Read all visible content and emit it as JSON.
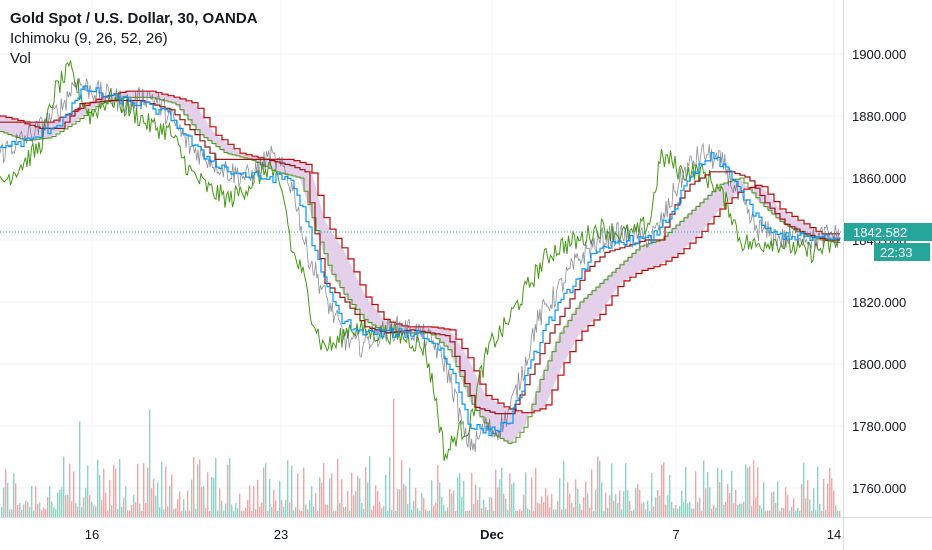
{
  "header": {
    "title": "Gold Spot / U.S. Dollar, 30, OANDA",
    "indicator": "Ichimoku (9, 26, 52, 26)",
    "volume": "Vol"
  },
  "price_badge": {
    "price": "1842.582",
    "countdown": "22:33"
  },
  "colors": {
    "price": "#2196f3",
    "conversion": "#0496ff",
    "base": "#991515",
    "lagging": "#459915",
    "lead_a": "#459915",
    "lead_b": "#cc0000",
    "cloud": "#e0c8e8",
    "badge": "#26a69a",
    "vol_up": "#8fd3c8",
    "vol_down": "#f4a6a6"
  },
  "chart_data": {
    "type": "line",
    "ylim": [
      1750,
      1915
    ],
    "y_ticks": [
      "1760.000",
      "1780.000",
      "1800.000",
      "1820.000",
      "1840.000",
      "1860.000",
      "1880.000",
      "1900.000"
    ],
    "x_ticks": [
      {
        "label": "16",
        "bold": false
      },
      {
        "label": "23",
        "bold": false
      },
      {
        "label": "Dec",
        "bold": true
      },
      {
        "label": "7",
        "bold": false
      },
      {
        "label": "14",
        "bold": false
      }
    ],
    "current_price": 1842.582,
    "price_keypoints": [
      [
        0,
        1868
      ],
      [
        20,
        1872
      ],
      [
        40,
        1876
      ],
      [
        60,
        1882
      ],
      [
        75,
        1891
      ],
      [
        95,
        1888
      ],
      [
        110,
        1886
      ],
      [
        130,
        1884
      ],
      [
        150,
        1887
      ],
      [
        170,
        1880
      ],
      [
        190,
        1870
      ],
      [
        210,
        1866
      ],
      [
        230,
        1862
      ],
      [
        250,
        1860
      ],
      [
        270,
        1867
      ],
      [
        285,
        1862
      ],
      [
        295,
        1855
      ],
      [
        305,
        1838
      ],
      [
        315,
        1830
      ],
      [
        325,
        1822
      ],
      [
        335,
        1815
      ],
      [
        345,
        1808
      ],
      [
        360,
        1806
      ],
      [
        380,
        1810
      ],
      [
        400,
        1812
      ],
      [
        420,
        1810
      ],
      [
        435,
        1806
      ],
      [
        445,
        1800
      ],
      [
        455,
        1790
      ],
      [
        465,
        1776
      ],
      [
        475,
        1774
      ],
      [
        485,
        1780
      ],
      [
        495,
        1778
      ],
      [
        505,
        1782
      ],
      [
        515,
        1790
      ],
      [
        525,
        1800
      ],
      [
        535,
        1812
      ],
      [
        545,
        1818
      ],
      [
        555,
        1822
      ],
      [
        570,
        1830
      ],
      [
        585,
        1836
      ],
      [
        600,
        1840
      ],
      [
        620,
        1842
      ],
      [
        640,
        1840
      ],
      [
        655,
        1842
      ],
      [
        665,
        1848
      ],
      [
        675,
        1856
      ],
      [
        685,
        1862
      ],
      [
        695,
        1866
      ],
      [
        705,
        1868
      ],
      [
        715,
        1866
      ],
      [
        725,
        1864
      ],
      [
        735,
        1856
      ],
      [
        745,
        1850
      ],
      [
        755,
        1844
      ],
      [
        770,
        1842
      ],
      [
        785,
        1840
      ],
      [
        800,
        1842
      ],
      [
        815,
        1840
      ],
      [
        830,
        1842
      ],
      [
        840,
        1841
      ]
    ],
    "conversion_keypoints": [
      [
        0,
        1870
      ],
      [
        30,
        1872
      ],
      [
        60,
        1878
      ],
      [
        85,
        1889
      ],
      [
        110,
        1886
      ],
      [
        140,
        1884
      ],
      [
        170,
        1880
      ],
      [
        200,
        1868
      ],
      [
        230,
        1862
      ],
      [
        260,
        1860
      ],
      [
        290,
        1860
      ],
      [
        305,
        1848
      ],
      [
        320,
        1830
      ],
      [
        340,
        1815
      ],
      [
        360,
        1810
      ],
      [
        390,
        1810
      ],
      [
        420,
        1810
      ],
      [
        440,
        1805
      ],
      [
        455,
        1795
      ],
      [
        470,
        1780
      ],
      [
        490,
        1778
      ],
      [
        510,
        1782
      ],
      [
        525,
        1795
      ],
      [
        545,
        1812
      ],
      [
        565,
        1822
      ],
      [
        590,
        1834
      ],
      [
        620,
        1840
      ],
      [
        650,
        1840
      ],
      [
        670,
        1848
      ],
      [
        690,
        1860
      ],
      [
        710,
        1867
      ],
      [
        730,
        1862
      ],
      [
        750,
        1850
      ],
      [
        770,
        1842
      ],
      [
        800,
        1841
      ],
      [
        840,
        1840
      ]
    ],
    "base_keypoints": [
      [
        0,
        1878
      ],
      [
        20,
        1878
      ],
      [
        40,
        1876
      ],
      [
        60,
        1876
      ],
      [
        80,
        1884
      ],
      [
        110,
        1885
      ],
      [
        140,
        1885
      ],
      [
        170,
        1882
      ],
      [
        195,
        1874
      ],
      [
        215,
        1866
      ],
      [
        240,
        1866
      ],
      [
        265,
        1866
      ],
      [
        290,
        1864
      ],
      [
        305,
        1862
      ],
      [
        315,
        1842
      ],
      [
        325,
        1826
      ],
      [
        345,
        1820
      ],
      [
        365,
        1812
      ],
      [
        385,
        1810
      ],
      [
        410,
        1811
      ],
      [
        430,
        1810
      ],
      [
        448,
        1809
      ],
      [
        462,
        1796
      ],
      [
        475,
        1786
      ],
      [
        495,
        1784
      ],
      [
        510,
        1784
      ],
      [
        520,
        1790
      ],
      [
        535,
        1800
      ],
      [
        550,
        1810
      ],
      [
        565,
        1818
      ],
      [
        585,
        1830
      ],
      [
        605,
        1836
      ],
      [
        625,
        1838
      ],
      [
        645,
        1840
      ],
      [
        660,
        1840
      ],
      [
        672,
        1850
      ],
      [
        690,
        1858
      ],
      [
        710,
        1862
      ],
      [
        730,
        1862
      ],
      [
        748,
        1860
      ],
      [
        765,
        1852
      ],
      [
        785,
        1845
      ],
      [
        805,
        1842
      ],
      [
        825,
        1840
      ],
      [
        840,
        1840
      ]
    ],
    "lagging_keypoints": [
      [
        0,
        1858
      ],
      [
        20,
        1864
      ],
      [
        40,
        1870
      ],
      [
        55,
        1888
      ],
      [
        70,
        1895
      ],
      [
        90,
        1880
      ],
      [
        110,
        1886
      ],
      [
        130,
        1882
      ],
      [
        150,
        1877
      ],
      [
        170,
        1875
      ],
      [
        190,
        1862
      ],
      [
        210,
        1856
      ],
      [
        230,
        1853
      ],
      [
        250,
        1858
      ],
      [
        270,
        1864
      ],
      [
        285,
        1852
      ],
      [
        292,
        1836
      ],
      [
        302,
        1830
      ],
      [
        312,
        1816
      ],
      [
        322,
        1806
      ],
      [
        335,
        1806
      ],
      [
        350,
        1812
      ],
      [
        370,
        1810
      ],
      [
        390,
        1810
      ],
      [
        410,
        1808
      ],
      [
        425,
        1805
      ],
      [
        435,
        1790
      ],
      [
        445,
        1770
      ],
      [
        458,
        1778
      ],
      [
        470,
        1780
      ],
      [
        480,
        1796
      ],
      [
        490,
        1806
      ],
      [
        505,
        1812
      ],
      [
        515,
        1818
      ],
      [
        530,
        1826
      ],
      [
        545,
        1834
      ],
      [
        560,
        1838
      ],
      [
        580,
        1840
      ],
      [
        600,
        1844
      ],
      [
        620,
        1842
      ],
      [
        635,
        1842
      ],
      [
        650,
        1846
      ],
      [
        660,
        1866
      ],
      [
        670,
        1866
      ],
      [
        680,
        1862
      ],
      [
        700,
        1862
      ],
      [
        715,
        1858
      ],
      [
        730,
        1850
      ],
      [
        740,
        1840
      ],
      [
        755,
        1838
      ],
      [
        770,
        1840
      ],
      [
        790,
        1838
      ],
      [
        810,
        1836
      ],
      [
        830,
        1838
      ],
      [
        840,
        1840
      ]
    ],
    "lead_a_keypoints": [
      [
        0,
        1875
      ],
      [
        25,
        1872
      ],
      [
        50,
        1873
      ],
      [
        75,
        1878
      ],
      [
        100,
        1884
      ],
      [
        125,
        1886
      ],
      [
        150,
        1886
      ],
      [
        175,
        1884
      ],
      [
        200,
        1874
      ],
      [
        225,
        1868
      ],
      [
        250,
        1866
      ],
      [
        275,
        1862
      ],
      [
        300,
        1860
      ],
      [
        315,
        1844
      ],
      [
        330,
        1830
      ],
      [
        345,
        1822
      ],
      [
        365,
        1814
      ],
      [
        385,
        1810
      ],
      [
        405,
        1810
      ],
      [
        430,
        1810
      ],
      [
        450,
        1804
      ],
      [
        470,
        1788
      ],
      [
        490,
        1778
      ],
      [
        510,
        1774
      ],
      [
        525,
        1780
      ],
      [
        540,
        1795
      ],
      [
        560,
        1810
      ],
      [
        580,
        1820
      ],
      [
        600,
        1826
      ],
      [
        620,
        1832
      ],
      [
        640,
        1838
      ],
      [
        660,
        1840
      ],
      [
        680,
        1846
      ],
      [
        700,
        1852
      ],
      [
        720,
        1858
      ],
      [
        740,
        1860
      ],
      [
        760,
        1852
      ],
      [
        780,
        1846
      ],
      [
        800,
        1842
      ],
      [
        820,
        1840
      ],
      [
        840,
        1839
      ]
    ],
    "lead_b_keypoints": [
      [
        0,
        1880
      ],
      [
        25,
        1878
      ],
      [
        50,
        1878
      ],
      [
        75,
        1882
      ],
      [
        100,
        1886
      ],
      [
        125,
        1888
      ],
      [
        150,
        1888
      ],
      [
        175,
        1886
      ],
      [
        195,
        1884
      ],
      [
        215,
        1874
      ],
      [
        240,
        1868
      ],
      [
        265,
        1866
      ],
      [
        290,
        1866
      ],
      [
        310,
        1864
      ],
      [
        325,
        1846
      ],
      [
        345,
        1836
      ],
      [
        365,
        1822
      ],
      [
        385,
        1814
      ],
      [
        405,
        1812
      ],
      [
        430,
        1812
      ],
      [
        450,
        1811
      ],
      [
        468,
        1802
      ],
      [
        485,
        1790
      ],
      [
        505,
        1786
      ],
      [
        525,
        1784
      ],
      [
        545,
        1786
      ],
      [
        560,
        1798
      ],
      [
        580,
        1810
      ],
      [
        600,
        1816
      ],
      [
        620,
        1826
      ],
      [
        640,
        1830
      ],
      [
        660,
        1832
      ],
      [
        680,
        1836
      ],
      [
        700,
        1842
      ],
      [
        720,
        1850
      ],
      [
        740,
        1856
      ],
      [
        760,
        1858
      ],
      [
        780,
        1850
      ],
      [
        800,
        1846
      ],
      [
        820,
        1842
      ],
      [
        840,
        1842
      ]
    ]
  }
}
